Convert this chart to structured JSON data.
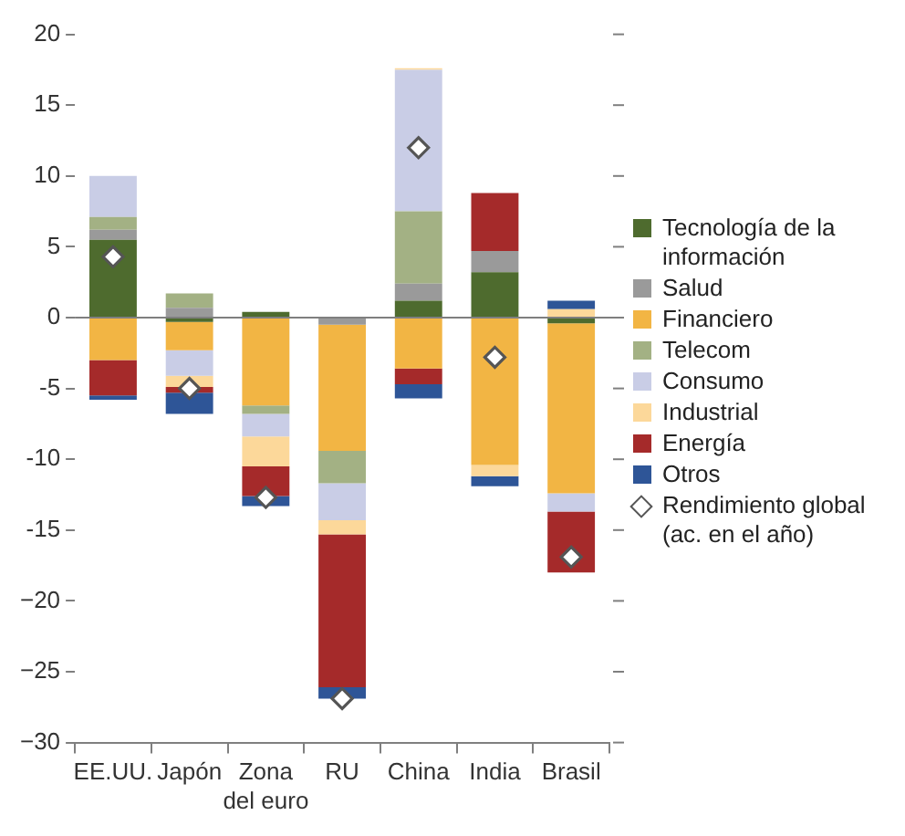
{
  "chart_data": {
    "type": "bar",
    "stacked": true,
    "categories": [
      "EE.UU.",
      "Japón",
      "Zona del euro",
      "RU",
      "China",
      "India",
      "Brasil"
    ],
    "series": [
      {
        "name": "Tecnología de la información",
        "color": "#4e6b2e",
        "values": [
          5.5,
          -0.3,
          0.4,
          null,
          1.2,
          3.2,
          -0.4
        ]
      },
      {
        "name": "Salud",
        "color": "#9a9a9a",
        "values": [
          0.7,
          0.7,
          null,
          -0.5,
          1.2,
          1.5,
          null
        ]
      },
      {
        "name": "Financiero",
        "color": "#f2b544",
        "values": [
          -3,
          -2,
          -6.2,
          -8.9,
          -3.6,
          -10.4,
          -12
        ]
      },
      {
        "name": "Telecom",
        "color": "#a3b184",
        "values": [
          0.9,
          1,
          -0.6,
          -2.3,
          5.1,
          null,
          null
        ]
      },
      {
        "name": "Consumo",
        "color": "#c9cde6",
        "values": [
          2.9,
          -1.8,
          -1.6,
          -2.6,
          10,
          null,
          -1.3
        ]
      },
      {
        "name": "Industrial",
        "color": "#fcd89a",
        "values": [
          null,
          -0.8,
          -2.1,
          -1,
          0.1,
          -0.8,
          0.6
        ]
      },
      {
        "name": "Energía",
        "color": "#a52a2a",
        "values": [
          -2.5,
          -0.4,
          -2.1,
          -10.8,
          -1.1,
          4.1,
          -4.3
        ]
      },
      {
        "name": "Otros",
        "color": "#2e5597",
        "values": [
          -0.3,
          -1.5,
          -0.7,
          -0.8,
          -1,
          -0.7,
          0.6
        ]
      },
      {
        "name": "Rendimiento global (ac. en el año)",
        "type": "scatter",
        "marker": "diamond",
        "color": "#555555",
        "values": [
          4.3,
          -5,
          -12.7,
          -26.9,
          12,
          -2.8,
          -16.9
        ]
      }
    ],
    "ylim": [
      -30,
      20
    ],
    "yticks": [
      20,
      15,
      10,
      5,
      0,
      -5,
      -10,
      -15,
      {
        "value": -20,
        "label": "−20"
      },
      {
        "value": -25,
        "label": "−25"
      },
      {
        "value": -30,
        "label": "−30"
      }
    ],
    "ref_lines": [
      {
        "axis": "y",
        "value": 0,
        "color": "#7f7f7f"
      }
    ],
    "grid": false,
    "legend": "right"
  }
}
